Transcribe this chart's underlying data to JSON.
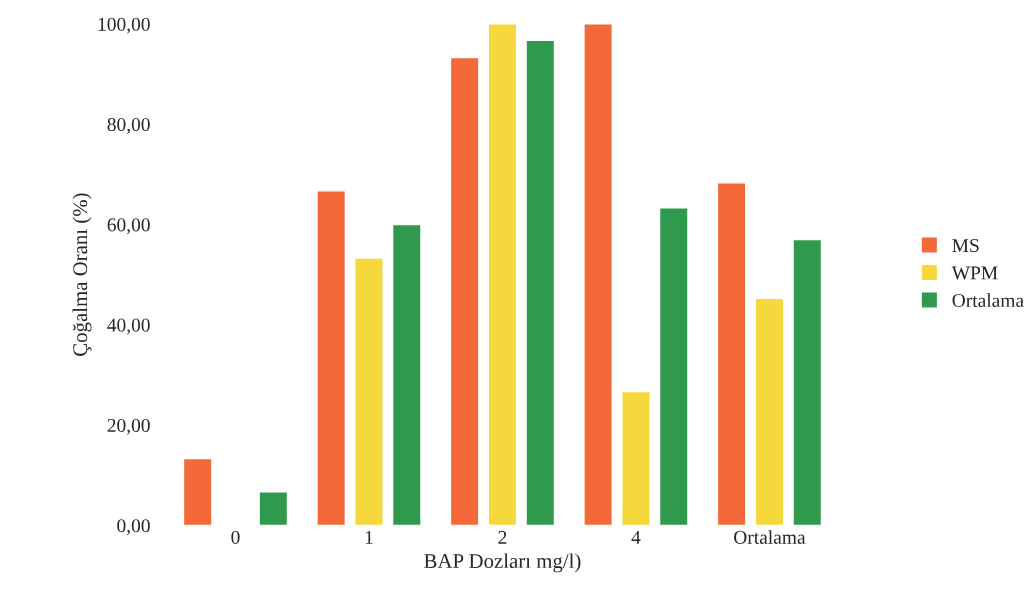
{
  "chart_data": {
    "type": "bar",
    "xlabel": "BAP Dozları mg/l)",
    "ylabel": "Çoğalma Oranı (%)",
    "categories": [
      "0",
      "1",
      "2",
      "4",
      "Ortalama"
    ],
    "series": [
      {
        "name": "MS",
        "color": "#f4693a",
        "values": [
          13.3,
          66.7,
          93.3,
          100,
          68.3
        ]
      },
      {
        "name": "WPM",
        "color": "#f6d83c",
        "values": [
          null,
          53.3,
          100,
          26.7,
          45.3
        ]
      },
      {
        "name": "Ortalama",
        "color": "#2f9a4e",
        "values": [
          6.7,
          60,
          96.7,
          63.3,
          57
        ]
      }
    ],
    "ylim": [
      0,
      100
    ],
    "yticks": [
      {
        "value": 0,
        "label": "0,00"
      },
      {
        "value": 20,
        "label": "20,00"
      },
      {
        "value": 40,
        "label": "40,00"
      },
      {
        "value": 60,
        "label": "60,00"
      },
      {
        "value": 80,
        "label": "80,00"
      },
      {
        "value": 100,
        "label": "100,00"
      }
    ],
    "grid": false,
    "legend": "right"
  }
}
